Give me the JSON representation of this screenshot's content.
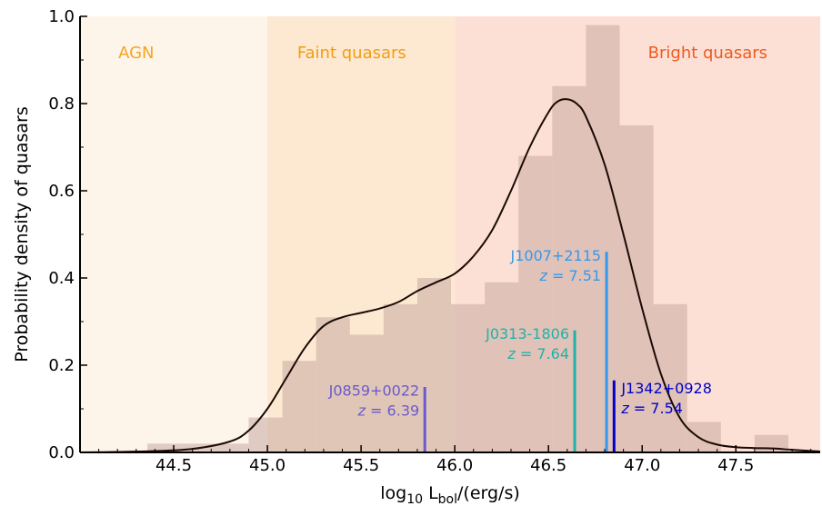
{
  "chart_data": {
    "type": "bar",
    "title": "",
    "xlabel": {
      "prefix": "log",
      "sub1": "10",
      "mid": " L",
      "sub2": "bol",
      "suffix": "/(erg/s)"
    },
    "ylabel": "Probability density of quasars",
    "xlim": [
      44.0,
      47.95
    ],
    "ylim": [
      0.0,
      1.0
    ],
    "xticks": [
      "44.5",
      "45.0",
      "45.5",
      "46.0",
      "46.5",
      "47.0",
      "47.5"
    ],
    "xtick_values": [
      44.5,
      45.0,
      45.5,
      46.0,
      46.5,
      47.0,
      47.5
    ],
    "yticks": [
      "0.0",
      "0.2",
      "0.4",
      "0.6",
      "0.8",
      "1.0"
    ],
    "ytick_values": [
      0.0,
      0.2,
      0.4,
      0.6,
      0.8,
      1.0
    ],
    "regions": [
      {
        "label": "AGN",
        "x0": 44.0,
        "x1": 45.0,
        "fill": "#fdf4ea",
        "text_color": "#f5a623",
        "label_x": 44.3
      },
      {
        "label": "Faint quasars",
        "x0": 45.0,
        "x1": 46.0,
        "fill": "#fde9d2",
        "text_color": "#f39c12",
        "label_x": 45.45
      },
      {
        "label": "Bright quasars",
        "x0": 46.0,
        "x1": 47.95,
        "fill": "#fde0d5",
        "text_color": "#f05a1e",
        "label_x": 47.35
      }
    ],
    "histogram": {
      "bin_edges": [
        44.18,
        44.36,
        44.54,
        44.72,
        44.9,
        45.08,
        45.26,
        45.44,
        45.62,
        45.8,
        45.98,
        46.16,
        46.34,
        46.52,
        46.7,
        46.88,
        47.06,
        47.24,
        47.42,
        47.6,
        47.78
      ],
      "values": [
        0.0,
        0.02,
        0.02,
        0.02,
        0.08,
        0.21,
        0.31,
        0.27,
        0.34,
        0.4,
        0.34,
        0.39,
        0.68,
        0.84,
        0.98,
        0.75,
        0.34,
        0.07,
        0.0,
        0.04
      ],
      "color": "#c9a9a0",
      "opacity": 0.55
    },
    "kde": {
      "x": [
        44.0,
        44.2,
        44.4,
        44.6,
        44.8,
        44.9,
        45.0,
        45.1,
        45.2,
        45.3,
        45.4,
        45.5,
        45.6,
        45.7,
        45.8,
        45.9,
        46.0,
        46.1,
        46.2,
        46.3,
        46.4,
        46.5,
        46.55,
        46.6,
        46.65,
        46.7,
        46.8,
        46.9,
        47.0,
        47.1,
        47.2,
        47.3,
        47.4,
        47.5,
        47.6,
        47.7,
        47.8,
        47.95
      ],
      "y": [
        0.0,
        0.001,
        0.003,
        0.008,
        0.025,
        0.05,
        0.1,
        0.17,
        0.24,
        0.29,
        0.31,
        0.32,
        0.33,
        0.345,
        0.37,
        0.39,
        0.41,
        0.45,
        0.51,
        0.6,
        0.7,
        0.78,
        0.805,
        0.81,
        0.8,
        0.77,
        0.66,
        0.5,
        0.33,
        0.18,
        0.08,
        0.035,
        0.018,
        0.012,
        0.01,
        0.009,
        0.006,
        0.002
      ],
      "color": "#1a0a05"
    },
    "markers": [
      {
        "name": "J0859+0022",
        "z_value": "6.39",
        "x": 45.84,
        "y_top": 0.15,
        "color": "#6a5acd",
        "anchor": "end",
        "dx": -6,
        "label_y": 0.13
      },
      {
        "name": "J0313-1806",
        "z_value": "7.64",
        "x": 46.64,
        "y_top": 0.28,
        "color": "#20b2aa",
        "anchor": "end",
        "dx": -6,
        "label_y": 0.26
      },
      {
        "name": "J1007+2115",
        "z_value": "7.51",
        "x": 46.81,
        "y_top": 0.46,
        "color": "#3399ee",
        "anchor": "end",
        "dx": -6,
        "label_y": 0.44
      },
      {
        "name": "J1342+0928",
        "z_value": "7.54",
        "x": 46.85,
        "y_top": 0.165,
        "color": "#0000cc",
        "anchor": "start",
        "dx": 8,
        "label_y": 0.135
      }
    ],
    "z_symbol": "z",
    "z_eq": " = ",
    "grid": false,
    "legend": "none"
  }
}
